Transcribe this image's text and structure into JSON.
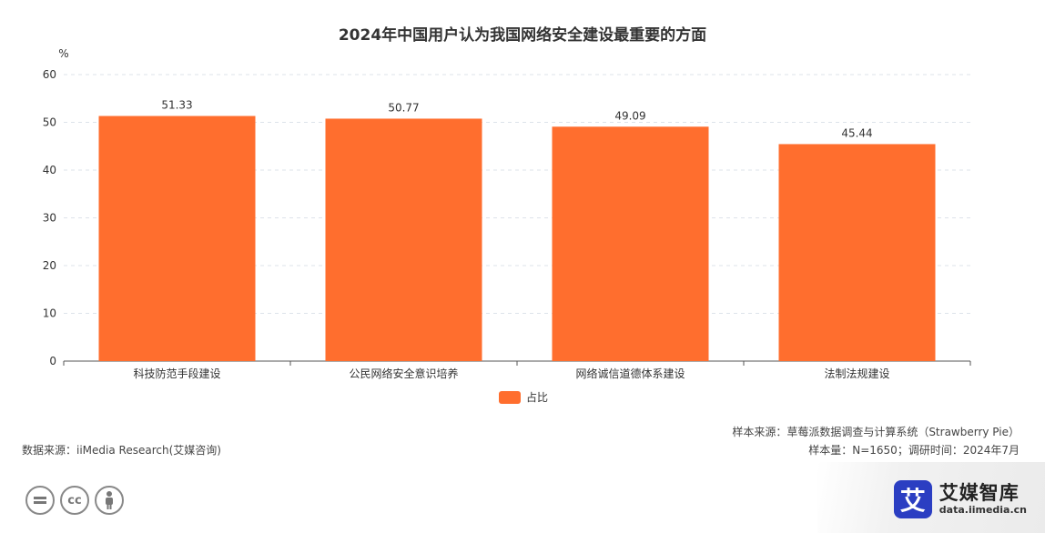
{
  "chart_data": {
    "type": "bar",
    "title": "2024年中国用户认为我国网络安全建设最重要的方面",
    "ylabel": "%",
    "xlabel": "",
    "ylim": [
      0,
      60
    ],
    "yticks": [
      0,
      10,
      20,
      30,
      40,
      50,
      60
    ],
    "grid": true,
    "legend_position": "bottom",
    "categories": [
      "科技防范手段建设",
      "公民网络安全意识培养",
      "网络诚信道德体系建设",
      "法制法规建设"
    ],
    "series": [
      {
        "name": "占比",
        "values": [
          51.33,
          50.77,
          49.09,
          45.44
        ],
        "color": "#ff6e2e"
      }
    ]
  },
  "footer": {
    "data_source": "数据来源：iiMedia Research(艾媒咨询)",
    "sample_source": "样本来源：草莓派数据调查与计算系统（Strawberry Pie）",
    "sample_size": "样本量：N=1650；调研时间：2024年7月"
  },
  "brand": {
    "logo_char": "艾",
    "name": "艾媒智库",
    "url": "data.iimedia.cn"
  },
  "license": {
    "equals": "=",
    "cc": "cc",
    "by": "by-person-icon"
  }
}
